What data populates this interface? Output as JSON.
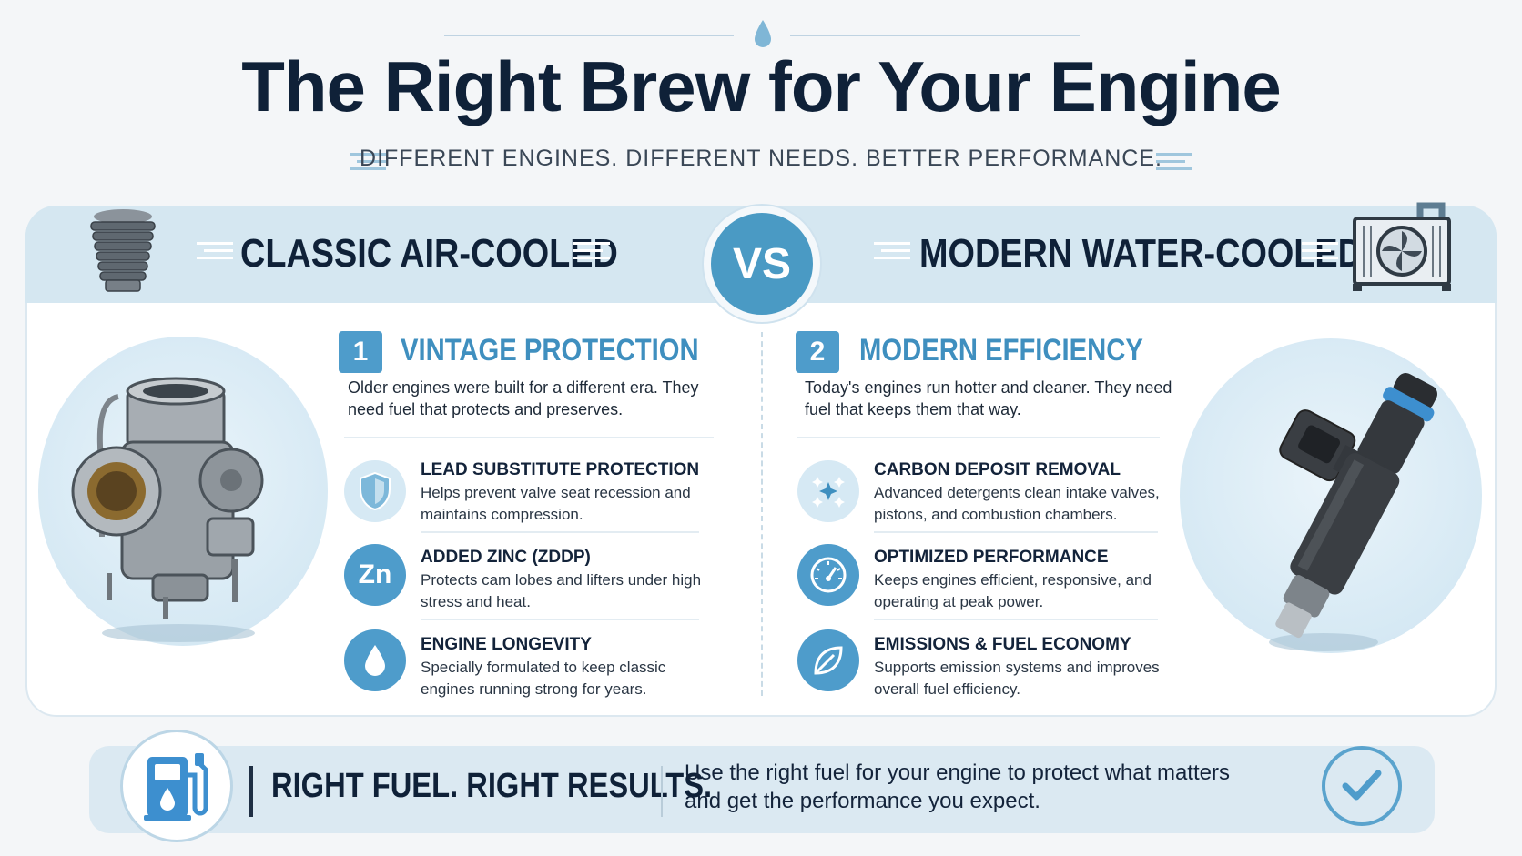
{
  "header": {
    "title": "The Right Brew for Your Engine",
    "subtitle": "DIFFERENT ENGINES. DIFFERENT NEEDS. BETTER PERFORMANCE."
  },
  "comparison": {
    "left_heading": "CLASSIC AIR-COOLED",
    "vs_label": "VS",
    "right_heading": "MODERN WATER-COOLED"
  },
  "left_section": {
    "number": "1",
    "title": "VINTAGE PROTECTION",
    "description": "Older engines were built for a different era. They need fuel that protects and preserves.",
    "features": [
      {
        "title": "LEAD SUBSTITUTE PROTECTION",
        "description": "Helps prevent valve seat recession and maintains compression.",
        "icon": "shield-icon"
      },
      {
        "title": "ADDED ZINC (ZDDP)",
        "description": "Protects cam lobes and lifters under high stress and heat.",
        "icon": "zinc-icon",
        "icon_text": "Zn"
      },
      {
        "title": "ENGINE LONGEVITY",
        "description": "Specially formulated to keep classic engines running strong for years.",
        "icon": "drop-icon"
      }
    ]
  },
  "right_section": {
    "number": "2",
    "title": "MODERN EFFICIENCY",
    "description": "Today's engines run hotter and cleaner. They need fuel that keeps them that way.",
    "features": [
      {
        "title": "CARBON DEPOSIT REMOVAL",
        "description": "Advanced detergents clean intake valves, pistons, and combustion chambers.",
        "icon": "sparkle-icon"
      },
      {
        "title": "OPTIMIZED PERFORMANCE",
        "description": "Keeps engines efficient, responsive, and operating at peak power.",
        "icon": "gauge-icon"
      },
      {
        "title": "EMISSIONS & FUEL ECONOMY",
        "description": "Supports emission systems and improves overall fuel efficiency.",
        "icon": "leaf-icon"
      }
    ]
  },
  "footer": {
    "title": "RIGHT FUEL. RIGHT RESULTS.",
    "text": "Use the right fuel for your engine to protect what matters and get the performance you expect."
  },
  "colors": {
    "primary_blue": "#4e9ccb",
    "light_blue": "#d5e7f1",
    "navy": "#0f2138"
  }
}
